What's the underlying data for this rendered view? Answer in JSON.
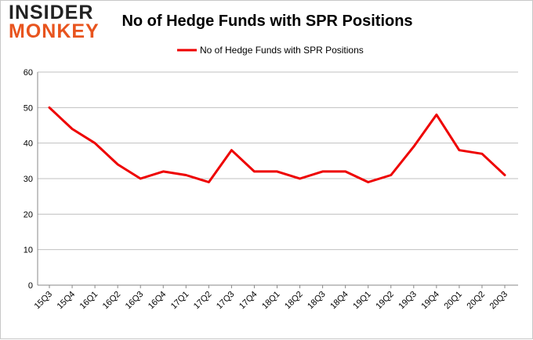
{
  "logo": {
    "line1": "Insider",
    "line2": "Monkey"
  },
  "colors": {
    "series": "#ee0000",
    "grid": "#c0c0c0",
    "axis": "#888888",
    "logo_accent": "#e8541e"
  },
  "chart_data": {
    "type": "line",
    "title": "No of Hedge Funds with SPR Positions",
    "xlabel": "",
    "ylabel": "",
    "ylim": [
      0,
      60
    ],
    "yticks": [
      0,
      10,
      20,
      30,
      40,
      50,
      60
    ],
    "grid": true,
    "legend": "top-center",
    "categories": [
      "15Q3",
      "15Q4",
      "16Q1",
      "16Q2",
      "16Q3",
      "16Q4",
      "17Q1",
      "17Q2",
      "17Q3",
      "17Q4",
      "18Q1",
      "18Q2",
      "18Q3",
      "18Q4",
      "19Q1",
      "19Q2",
      "19Q3",
      "19Q4",
      "20Q1",
      "20Q2",
      "20Q3"
    ],
    "series": [
      {
        "name": "No of Hedge Funds with SPR Positions",
        "values": [
          50,
          44,
          40,
          34,
          30,
          32,
          31,
          29,
          38,
          32,
          32,
          30,
          32,
          32,
          29,
          31,
          39,
          48,
          38,
          37,
          31
        ]
      }
    ]
  }
}
